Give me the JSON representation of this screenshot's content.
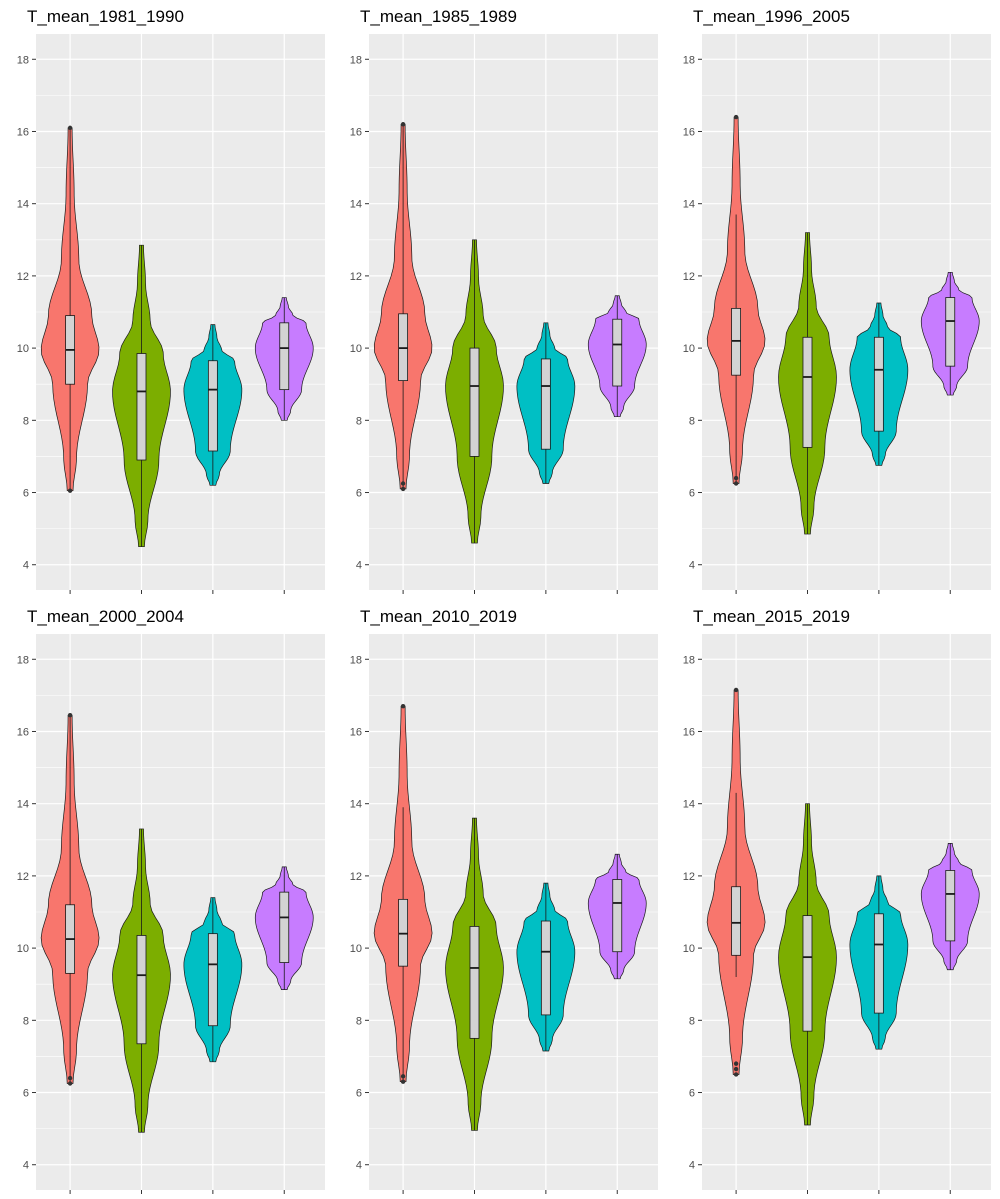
{
  "chart_data": {
    "type": "violin",
    "facet_layout": "2 rows x 3 columns",
    "ylim": [
      3.3,
      18.7
    ],
    "yticks": [
      4,
      6,
      8,
      10,
      12,
      14,
      16,
      18
    ],
    "grid": true,
    "legend": "none",
    "series_colors": [
      "#F8766D",
      "#7CAE00",
      "#00BFC4",
      "#C77CFF"
    ],
    "panels": [
      {
        "title": "T_mean_1981_1990",
        "groups": [
          {
            "min": 6.05,
            "max": 16.1,
            "q1": 9.0,
            "median": 9.95,
            "q3": 10.9,
            "whisker_low": 6.05,
            "whisker_high": 16.1,
            "outliers": [
              6.05,
              16.1
            ]
          },
          {
            "min": 4.5,
            "max": 12.85,
            "q1": 6.9,
            "median": 8.8,
            "q3": 9.85,
            "whisker_low": 4.5,
            "whisker_high": 12.85,
            "outliers": []
          },
          {
            "min": 6.2,
            "max": 10.65,
            "q1": 7.15,
            "median": 8.85,
            "q3": 9.65,
            "whisker_low": 6.2,
            "whisker_high": 10.65,
            "outliers": []
          },
          {
            "min": 8.0,
            "max": 11.4,
            "q1": 8.85,
            "median": 10.0,
            "q3": 10.7,
            "whisker_low": 8.0,
            "whisker_high": 11.4,
            "outliers": []
          }
        ]
      },
      {
        "title": "T_mean_1985_1989",
        "groups": [
          {
            "min": 6.1,
            "max": 16.2,
            "q1": 9.1,
            "median": 10.0,
            "q3": 10.95,
            "whisker_low": 6.1,
            "whisker_high": 16.2,
            "outliers": [
              6.1,
              6.25,
              16.2
            ]
          },
          {
            "min": 4.6,
            "max": 13.0,
            "q1": 7.0,
            "median": 8.95,
            "q3": 10.0,
            "whisker_low": 4.6,
            "whisker_high": 13.0,
            "outliers": []
          },
          {
            "min": 6.25,
            "max": 10.7,
            "q1": 7.2,
            "median": 8.95,
            "q3": 9.7,
            "whisker_low": 6.25,
            "whisker_high": 10.7,
            "outliers": []
          },
          {
            "min": 8.1,
            "max": 11.45,
            "q1": 8.95,
            "median": 10.1,
            "q3": 10.8,
            "whisker_low": 8.1,
            "whisker_high": 11.45,
            "outliers": []
          }
        ]
      },
      {
        "title": "T_mean_1996_2005",
        "groups": [
          {
            "min": 6.25,
            "max": 16.4,
            "q1": 9.25,
            "median": 10.2,
            "q3": 11.1,
            "whisker_low": 6.25,
            "whisker_high": 13.7,
            "outliers": [
              6.25,
              6.4,
              16.4
            ]
          },
          {
            "min": 4.85,
            "max": 13.2,
            "q1": 7.25,
            "median": 9.2,
            "q3": 10.3,
            "whisker_low": 4.85,
            "whisker_high": 13.2,
            "outliers": []
          },
          {
            "min": 6.75,
            "max": 11.25,
            "q1": 7.7,
            "median": 9.4,
            "q3": 10.3,
            "whisker_low": 6.75,
            "whisker_high": 11.25,
            "outliers": []
          },
          {
            "min": 8.7,
            "max": 12.1,
            "q1": 9.5,
            "median": 10.75,
            "q3": 11.4,
            "whisker_low": 8.7,
            "whisker_high": 12.1,
            "outliers": []
          }
        ]
      },
      {
        "title": "T_mean_2000_2004",
        "groups": [
          {
            "min": 6.25,
            "max": 16.45,
            "q1": 9.3,
            "median": 10.25,
            "q3": 11.2,
            "whisker_low": 6.25,
            "whisker_high": 16.45,
            "outliers": [
              6.25,
              6.4,
              16.45
            ]
          },
          {
            "min": 4.9,
            "max": 13.3,
            "q1": 7.35,
            "median": 9.25,
            "q3": 10.35,
            "whisker_low": 4.9,
            "whisker_high": 13.3,
            "outliers": []
          },
          {
            "min": 6.85,
            "max": 11.4,
            "q1": 7.85,
            "median": 9.55,
            "q3": 10.4,
            "whisker_low": 6.85,
            "whisker_high": 11.4,
            "outliers": []
          },
          {
            "min": 8.85,
            "max": 12.25,
            "q1": 9.6,
            "median": 10.85,
            "q3": 11.55,
            "whisker_low": 8.85,
            "whisker_high": 12.25,
            "outliers": []
          }
        ]
      },
      {
        "title": "T_mean_2010_2019",
        "groups": [
          {
            "min": 6.3,
            "max": 16.7,
            "q1": 9.5,
            "median": 10.4,
            "q3": 11.35,
            "whisker_low": 6.3,
            "whisker_high": 13.9,
            "outliers": [
              6.3,
              6.45,
              16.7
            ]
          },
          {
            "min": 4.95,
            "max": 13.6,
            "q1": 7.5,
            "median": 9.45,
            "q3": 10.6,
            "whisker_low": 4.95,
            "whisker_high": 13.6,
            "outliers": []
          },
          {
            "min": 7.15,
            "max": 11.8,
            "q1": 8.15,
            "median": 9.9,
            "q3": 10.75,
            "whisker_low": 7.15,
            "whisker_high": 11.8,
            "outliers": []
          },
          {
            "min": 9.15,
            "max": 12.6,
            "q1": 9.9,
            "median": 11.25,
            "q3": 11.9,
            "whisker_low": 9.15,
            "whisker_high": 12.6,
            "outliers": []
          }
        ]
      },
      {
        "title": "T_mean_2015_2019",
        "groups": [
          {
            "min": 6.5,
            "max": 17.15,
            "q1": 9.8,
            "median": 10.7,
            "q3": 11.7,
            "whisker_low": 9.2,
            "whisker_high": 14.3,
            "outliers": [
              6.5,
              6.65,
              6.8,
              17.15
            ]
          },
          {
            "min": 5.1,
            "max": 14.0,
            "q1": 7.7,
            "median": 9.75,
            "q3": 10.9,
            "whisker_low": 5.1,
            "whisker_high": 14.0,
            "outliers": []
          },
          {
            "min": 7.2,
            "max": 12.0,
            "q1": 8.2,
            "median": 10.1,
            "q3": 10.95,
            "whisker_low": 7.2,
            "whisker_high": 12.0,
            "outliers": []
          },
          {
            "min": 9.4,
            "max": 12.9,
            "q1": 10.2,
            "median": 11.5,
            "q3": 12.15,
            "whisker_low": 9.4,
            "whisker_high": 12.9,
            "outliers": []
          }
        ]
      }
    ]
  }
}
